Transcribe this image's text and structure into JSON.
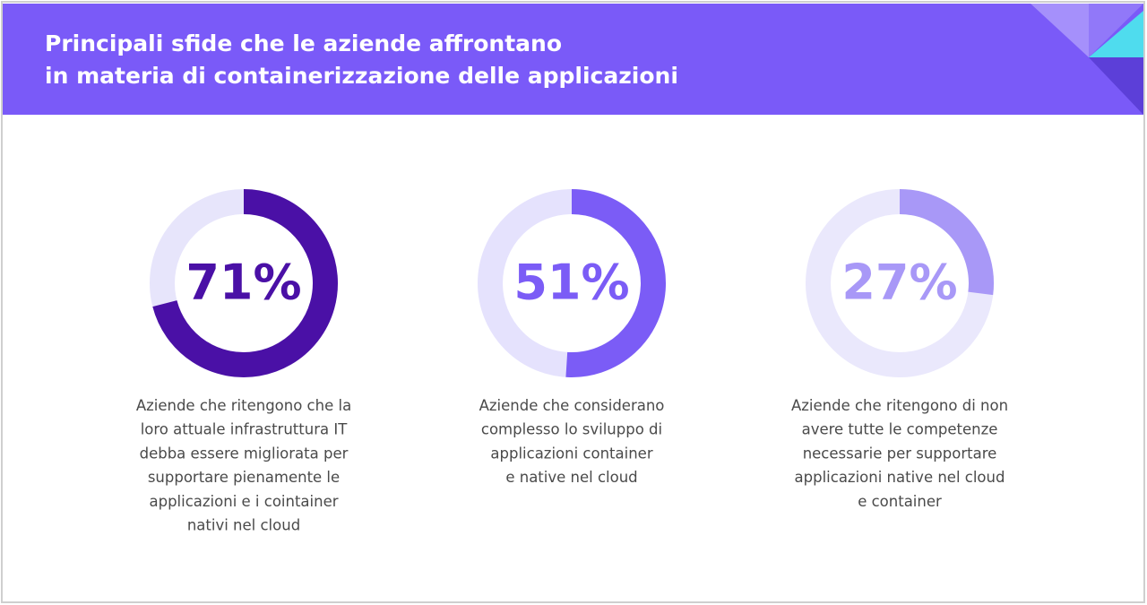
{
  "title": [
    "Principali sfide che le aziende affrontano",
    "in materia di containerizzazione delle applicazioni"
  ],
  "chart_data": [
    {
      "type": "donut",
      "values": [
        71
      ],
      "value_labels": [
        "71%"
      ],
      "color": "#4a10a6",
      "track_color": "#e7e5fb",
      "description": [
        "Aziende che ritengono che la",
        "loro attuale infrastruttura IT",
        "debba essere migliorata per",
        "supportare pienamente le",
        "applicazioni e i cointainer",
        "nativi nel cloud"
      ]
    },
    {
      "type": "donut",
      "values": [
        51
      ],
      "value_labels": [
        "51%"
      ],
      "color": "#7b5cf6",
      "track_color": "#e5e2fd",
      "description": [
        "Aziende che considerano",
        "complesso lo sviluppo di",
        "applicazioni container",
        "e native nel cloud"
      ]
    },
    {
      "type": "donut",
      "values": [
        27
      ],
      "value_labels": [
        "27%"
      ],
      "color": "#a898f7",
      "track_color": "#eae8fc",
      "description": [
        "Aziende che ritengono di non",
        "avere tutte le competenze",
        "necessarie per supportare",
        "applicazioni native nel cloud",
        "e container"
      ]
    }
  ]
}
